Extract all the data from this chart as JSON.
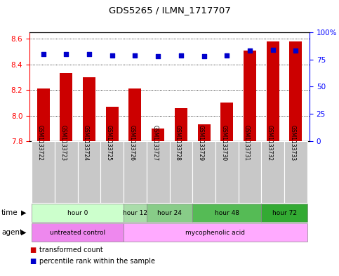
{
  "title": "GDS5265 / ILMN_1717707",
  "samples": [
    "GSM1133722",
    "GSM1133723",
    "GSM1133724",
    "GSM1133725",
    "GSM1133726",
    "GSM1133727",
    "GSM1133728",
    "GSM1133729",
    "GSM1133730",
    "GSM1133731",
    "GSM1133732",
    "GSM1133733"
  ],
  "bar_values": [
    8.21,
    8.33,
    8.3,
    8.07,
    8.21,
    7.9,
    8.06,
    7.93,
    8.1,
    8.51,
    8.58,
    8.58
  ],
  "percentile_values": [
    80,
    80,
    80,
    79,
    79,
    78,
    79,
    78,
    79,
    83,
    84,
    83
  ],
  "ylim": [
    7.8,
    8.65
  ],
  "yticks_left": [
    7.8,
    8.0,
    8.2,
    8.4,
    8.6
  ],
  "yticks_right": [
    0,
    25,
    50,
    75,
    100
  ],
  "bar_color": "#cc0000",
  "dot_color": "#0000cc",
  "bar_bottom": 7.8,
  "time_groups": [
    {
      "label": "hour 0",
      "start": 0,
      "end": 3,
      "color": "#ccffcc"
    },
    {
      "label": "hour 12",
      "start": 4,
      "end": 4,
      "color": "#aaddaa"
    },
    {
      "label": "hour 24",
      "start": 5,
      "end": 6,
      "color": "#88cc88"
    },
    {
      "label": "hour 48",
      "start": 7,
      "end": 9,
      "color": "#55bb55"
    },
    {
      "label": "hour 72",
      "start": 10,
      "end": 11,
      "color": "#33aa33"
    }
  ],
  "agent_groups": [
    {
      "label": "untreated control",
      "start": 0,
      "end": 3,
      "color": "#ee88ee"
    },
    {
      "label": "mycophenolic acid",
      "start": 4,
      "end": 11,
      "color": "#ffaaff"
    }
  ]
}
